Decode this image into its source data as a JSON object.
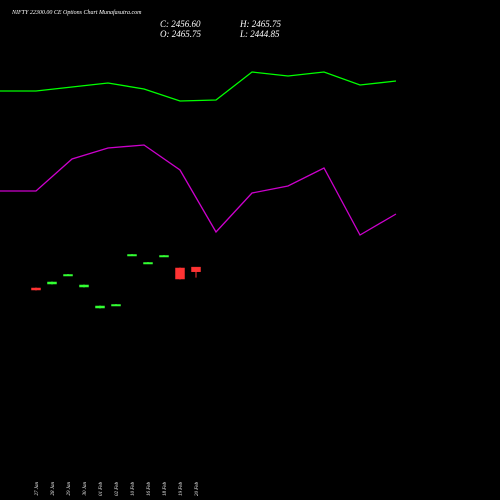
{
  "chart_data": [
    {
      "type": "line",
      "categories": [
        null,
        null,
        null,
        null,
        null,
        null,
        null,
        null,
        null,
        null,
        null,
        null
      ],
      "ylim": [
        0,
        500
      ],
      "series": [
        {
          "color": "#00ff00",
          "values": [
            409,
            409,
            413,
            417,
            411,
            399,
            400,
            428,
            424,
            428,
            415,
            419
          ]
        },
        {
          "color": "#cc00cc",
          "values": [
            309,
            309,
            341,
            352,
            355,
            330,
            268,
            307,
            314,
            332,
            265,
            286
          ]
        }
      ]
    },
    {
      "type": "candlestick",
      "title": "NIFTY 22300.00  CE Options  Chart Munafasutra.com",
      "header": [
        "C: 2456.60",
        "H: 2465.75",
        "O: 2465.75",
        "L: 2444.85"
      ],
      "ylim": [
        2000,
        3000
      ],
      "categories": [
        "27 Jan",
        "28 Jan",
        "29 Jan",
        "30 Jan",
        "01 Feb",
        "02 Feb",
        "10 Feb",
        "16 Feb",
        "18 Feb",
        "19 Feb",
        "20 Feb"
      ],
      "open": [
        2424,
        2432,
        2449,
        2426,
        2384,
        2389,
        2489,
        2473,
        2487,
        2464,
        2465.75
      ],
      "high": [
        2425,
        2437,
        2452,
        2431,
        2389,
        2392,
        2492,
        2476,
        2490,
        2465,
        2465.75
      ],
      "low": [
        2419,
        2431,
        2448,
        2425,
        2383,
        2388,
        2488,
        2472,
        2486,
        2441,
        2444.85
      ],
      "close": [
        2420,
        2436,
        2451,
        2430,
        2388,
        2391,
        2491,
        2475,
        2489,
        2442,
        2456.6
      ],
      "up_color": "#33ff33",
      "down_color": "#ff3333"
    }
  ]
}
